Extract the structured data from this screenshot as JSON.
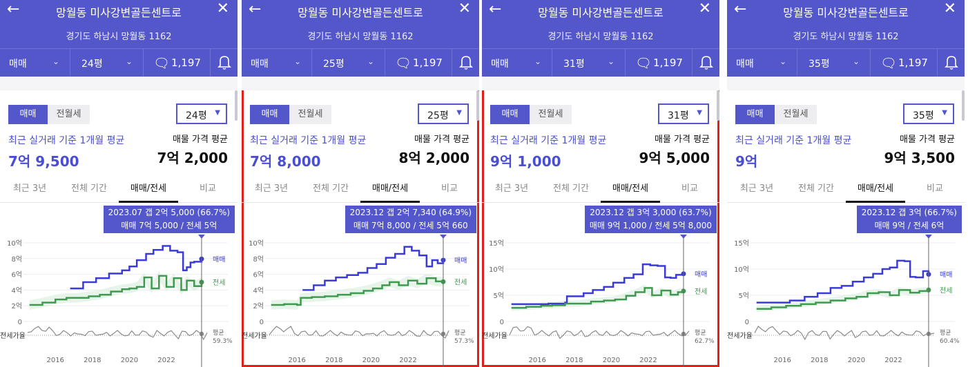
{
  "header": {
    "title": "망월동 미사강변골든센트로",
    "address": "경기도 하남시 망월동 1162",
    "back_icon": "arrow-left-icon",
    "close_icon": "close-icon",
    "comment_count": "1,197",
    "deal_type": "매매"
  },
  "tabs": [
    "최근 3년",
    "전체 기간",
    "매매/전세",
    "비교"
  ],
  "segment": {
    "sale": "매매",
    "rent": "전월세"
  },
  "labels": {
    "recent_avg": "최근 실거래 기준 1개월 평균",
    "listing_avg": "매물 가격 평균",
    "legend_sale": "매매",
    "legend_jeonse": "전세",
    "ratio_label": "전세가율",
    "avg_label": "평균"
  },
  "colors": {
    "header": "#5457c9",
    "sale": "#3a3ad6",
    "jeonse": "#3f9a4f",
    "selected_border": "#e0201c"
  },
  "panels": [
    {
      "size": "24평",
      "recent_price": "7억 9,500",
      "listing_price": "7억 2,000",
      "tooltip_line1": "2023.07  갭 2억 5,000 (66.7%)",
      "tooltip_line2": "매매 7억 5,000 / 전세 5억",
      "avg_ratio": "59.3%",
      "selected": false
    },
    {
      "size": "25평",
      "recent_price": "7억 8,000",
      "listing_price": "8억 2,000",
      "tooltip_line1": "2023.12  갭 2억 7,340 (64.9%)",
      "tooltip_line2": "매매 7억 8,000 / 전세 5억 660",
      "avg_ratio": "57.3%",
      "selected": true
    },
    {
      "size": "31평",
      "recent_price": "9억 1,000",
      "listing_price": "9억 5,000",
      "tooltip_line1": "2023.12  갭 3억 3,000 (63.7%)",
      "tooltip_line2": "매매 9억 1,000 / 전세 5억 8,000",
      "avg_ratio": "62.7%",
      "selected": true
    },
    {
      "size": "35평",
      "recent_price": "9억",
      "listing_price": "9억 3,500",
      "tooltip_line1": "2023.12  갭 3억 (66.7%)",
      "tooltip_line2": "매매 9억 / 전세 6억",
      "avg_ratio": "60.4%",
      "selected": false
    }
  ],
  "chart_data": [
    {
      "type": "line",
      "yticks": [
        "10억",
        "8억",
        "6억",
        "4억",
        "2억",
        "0"
      ],
      "ylim": [
        0,
        10
      ],
      "xticks": [
        "2016",
        "2018",
        "2020",
        "2022"
      ],
      "xlim": [
        2014.5,
        2024.2
      ],
      "series": [
        {
          "name": "매매",
          "x": [
            2016.8,
            2017.5,
            2018.2,
            2018.9,
            2019.6,
            2020.0,
            2020.4,
            2020.9,
            2021.3,
            2021.8,
            2022.2,
            2022.6,
            2022.9,
            2023.1,
            2023.3,
            2023.5,
            2023.9
          ],
          "y": [
            4.2,
            5.0,
            5.5,
            6.1,
            6.5,
            7.0,
            7.8,
            8.6,
            9.1,
            9.6,
            9.0,
            8.8,
            6.5,
            6.9,
            7.5,
            7.6,
            7.95
          ]
        },
        {
          "name": "전세",
          "x": [
            2014.6,
            2015.3,
            2016.0,
            2016.6,
            2017.2,
            2017.8,
            2018.4,
            2019.0,
            2019.6,
            2020.0,
            2020.4,
            2020.8,
            2021.2,
            2021.6,
            2022.0,
            2022.4,
            2022.8,
            2023.1,
            2023.5,
            2023.9
          ],
          "y": [
            2.1,
            2.4,
            2.8,
            3.0,
            3.0,
            3.2,
            3.4,
            3.8,
            4.1,
            4.2,
            4.4,
            5.6,
            4.2,
            5.8,
            4.4,
            5.5,
            4.0,
            5.2,
            4.5,
            5.0
          ]
        }
      ]
    },
    {
      "type": "line",
      "yticks": [
        "10억",
        "8억",
        "6억",
        "4억",
        "2억",
        "0"
      ],
      "ylim": [
        0,
        10
      ],
      "xticks": [
        "2016",
        "2018",
        "2020",
        "2022"
      ],
      "xlim": [
        2014.5,
        2024.2
      ],
      "series": [
        {
          "name": "매매",
          "x": [
            2016.3,
            2016.9,
            2017.5,
            2018.1,
            2018.7,
            2019.3,
            2019.8,
            2020.3,
            2020.8,
            2021.3,
            2021.8,
            2022.2,
            2022.6,
            2023.0,
            2023.3,
            2023.6,
            2023.9
          ],
          "y": [
            4.0,
            4.6,
            5.2,
            5.6,
            5.9,
            6.2,
            6.8,
            7.3,
            8.1,
            8.6,
            9.5,
            9.0,
            8.4,
            7.0,
            7.8,
            7.4,
            7.8
          ]
        },
        {
          "name": "전세",
          "x": [
            2014.6,
            2015.3,
            2016.0,
            2016.2,
            2016.8,
            2017.5,
            2018.2,
            2018.9,
            2019.6,
            2020.1,
            2020.6,
            2021.0,
            2021.5,
            2022.0,
            2022.5,
            2023.0,
            2023.5,
            2023.9
          ],
          "y": [
            2.1,
            2.2,
            2.1,
            3.0,
            3.1,
            3.2,
            3.4,
            3.6,
            3.9,
            4.2,
            4.6,
            5.0,
            4.6,
            5.2,
            4.8,
            5.5,
            5.1,
            5.06
          ]
        }
      ]
    },
    {
      "type": "line",
      "yticks": [
        "15억",
        "10억",
        "5억",
        "0"
      ],
      "ylim": [
        0,
        15
      ],
      "xticks": [
        "2016",
        "2018",
        "2020",
        "2022"
      ],
      "xlim": [
        2014.5,
        2024.2
      ],
      "series": [
        {
          "name": "매매",
          "x": [
            2014.6,
            2015.6,
            2016.6,
            2017.5,
            2017.6,
            2018.5,
            2019.0,
            2019.6,
            2020.1,
            2020.7,
            2021.2,
            2021.7,
            2022.1,
            2022.5,
            2022.9,
            2023.2,
            2023.5,
            2023.9
          ],
          "y": [
            3.3,
            3.3,
            3.4,
            3.6,
            4.8,
            5.4,
            6.0,
            6.6,
            7.4,
            8.3,
            9.0,
            10.9,
            10.7,
            10.6,
            8.4,
            8.3,
            8.9,
            9.1
          ]
        },
        {
          "name": "전세",
          "x": [
            2014.6,
            2015.4,
            2016.2,
            2016.8,
            2017.5,
            2018.2,
            2018.9,
            2019.6,
            2020.2,
            2020.8,
            2021.3,
            2021.8,
            2022.2,
            2022.7,
            2023.2,
            2023.6,
            2023.9
          ],
          "y": [
            2.6,
            2.8,
            3.0,
            3.1,
            3.4,
            3.4,
            3.8,
            4.0,
            4.2,
            4.9,
            5.6,
            6.4,
            5.0,
            5.9,
            5.1,
            5.6,
            5.8
          ]
        }
      ]
    },
    {
      "type": "line",
      "yticks": [
        "15억",
        "10억",
        "5억",
        "0"
      ],
      "ylim": [
        0,
        15
      ],
      "xticks": [
        "2016",
        "2018",
        "2020",
        "2022"
      ],
      "xlim": [
        2014.5,
        2024.2
      ],
      "series": [
        {
          "name": "매매",
          "x": [
            2014.6,
            2015.5,
            2016.4,
            2017.2,
            2017.9,
            2018.6,
            2019.2,
            2019.8,
            2020.4,
            2020.9,
            2021.4,
            2021.8,
            2022.2,
            2022.6,
            2022.9,
            2023.2,
            2023.6,
            2023.9
          ],
          "y": [
            3.6,
            3.6,
            4.0,
            4.7,
            5.4,
            6.4,
            6.8,
            7.6,
            8.4,
            9.1,
            10.0,
            10.3,
            11.6,
            11.5,
            8.5,
            8.4,
            9.6,
            9.0
          ]
        },
        {
          "name": "전세",
          "x": [
            2014.6,
            2015.4,
            2016.2,
            2017.0,
            2017.8,
            2018.6,
            2019.4,
            2020.0,
            2020.6,
            2021.2,
            2021.8,
            2022.3,
            2022.9,
            2023.4,
            2023.9
          ],
          "y": [
            2.4,
            2.7,
            3.0,
            3.3,
            3.6,
            4.0,
            4.4,
            4.7,
            5.4,
            5.6,
            5.0,
            6.0,
            5.5,
            5.8,
            6.0
          ]
        }
      ]
    }
  ]
}
